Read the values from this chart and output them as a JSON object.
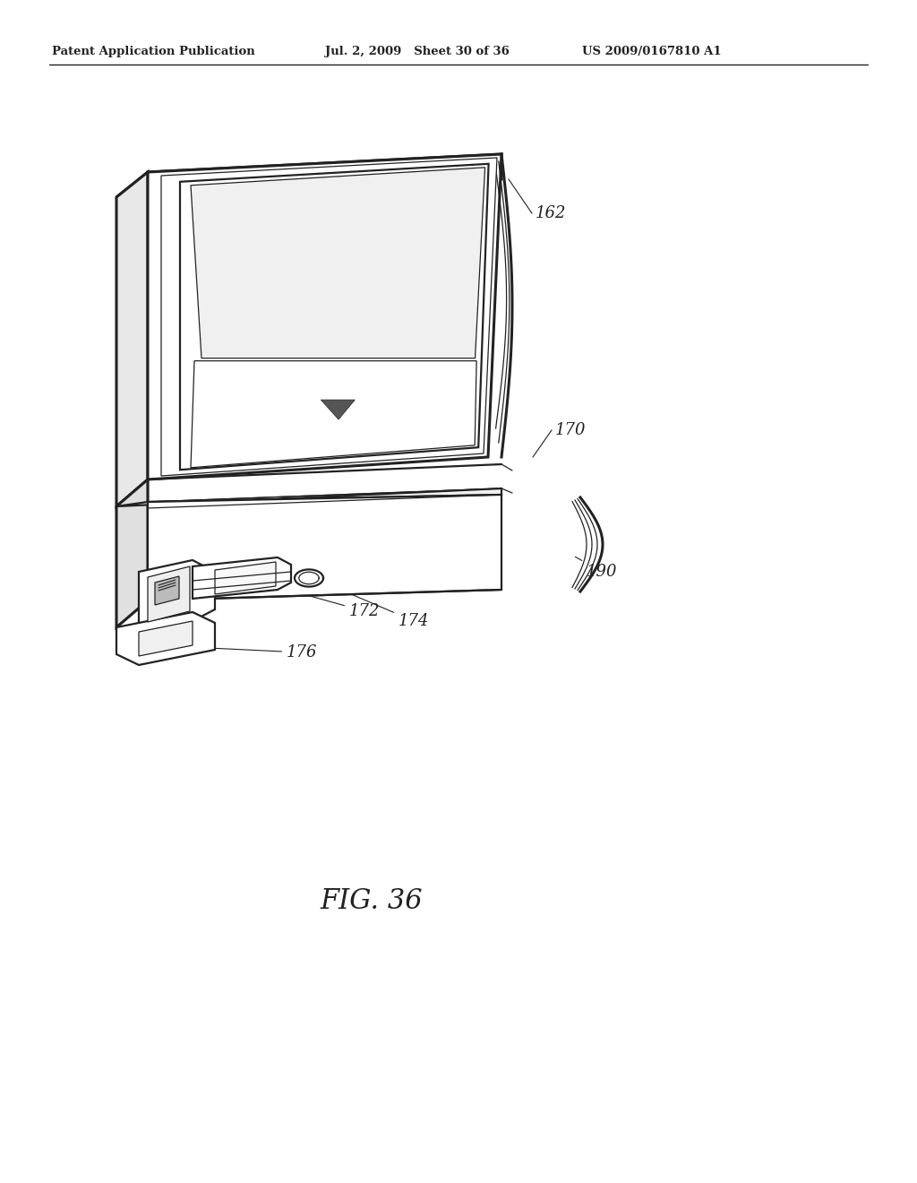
{
  "header_left": "Patent Application Publication",
  "header_mid": "Jul. 2, 2009   Sheet 30 of 36",
  "header_right": "US 2009/0167810 A1",
  "fig_label": "FIG. 36",
  "background_color": "#ffffff",
  "line_color": "#222222",
  "text_color": "#222222",
  "lw_main": 1.6,
  "lw_thick": 2.2,
  "lw_thin": 0.9
}
